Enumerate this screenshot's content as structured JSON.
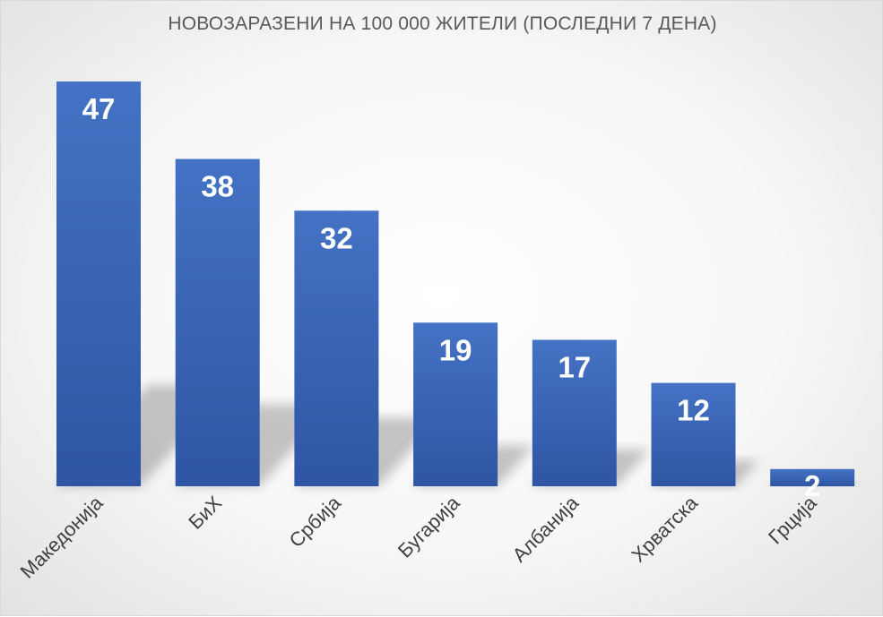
{
  "chart_data": {
    "type": "bar",
    "title": "НОВОЗАРАЗЕНИ НА 100 000 ЖИТЕЛИ (ПОСЛЕДНИ 7 ДЕНА)",
    "categories": [
      "Македонија",
      "БиХ",
      "Србија",
      "Бугарија",
      "Албанија",
      "Хрватска",
      "Грција"
    ],
    "values": [
      47,
      38,
      32,
      19,
      17,
      12,
      2
    ],
    "xlabel": "",
    "ylabel": "",
    "ylim": [
      0,
      47
    ],
    "grid": false,
    "legend": "none",
    "data_labels": true,
    "colors": {
      "bar_top": "#4472c4",
      "bar_bottom": "#2f55a4",
      "label": "#ffffff",
      "tick": "#404040",
      "title": "#595959"
    }
  }
}
